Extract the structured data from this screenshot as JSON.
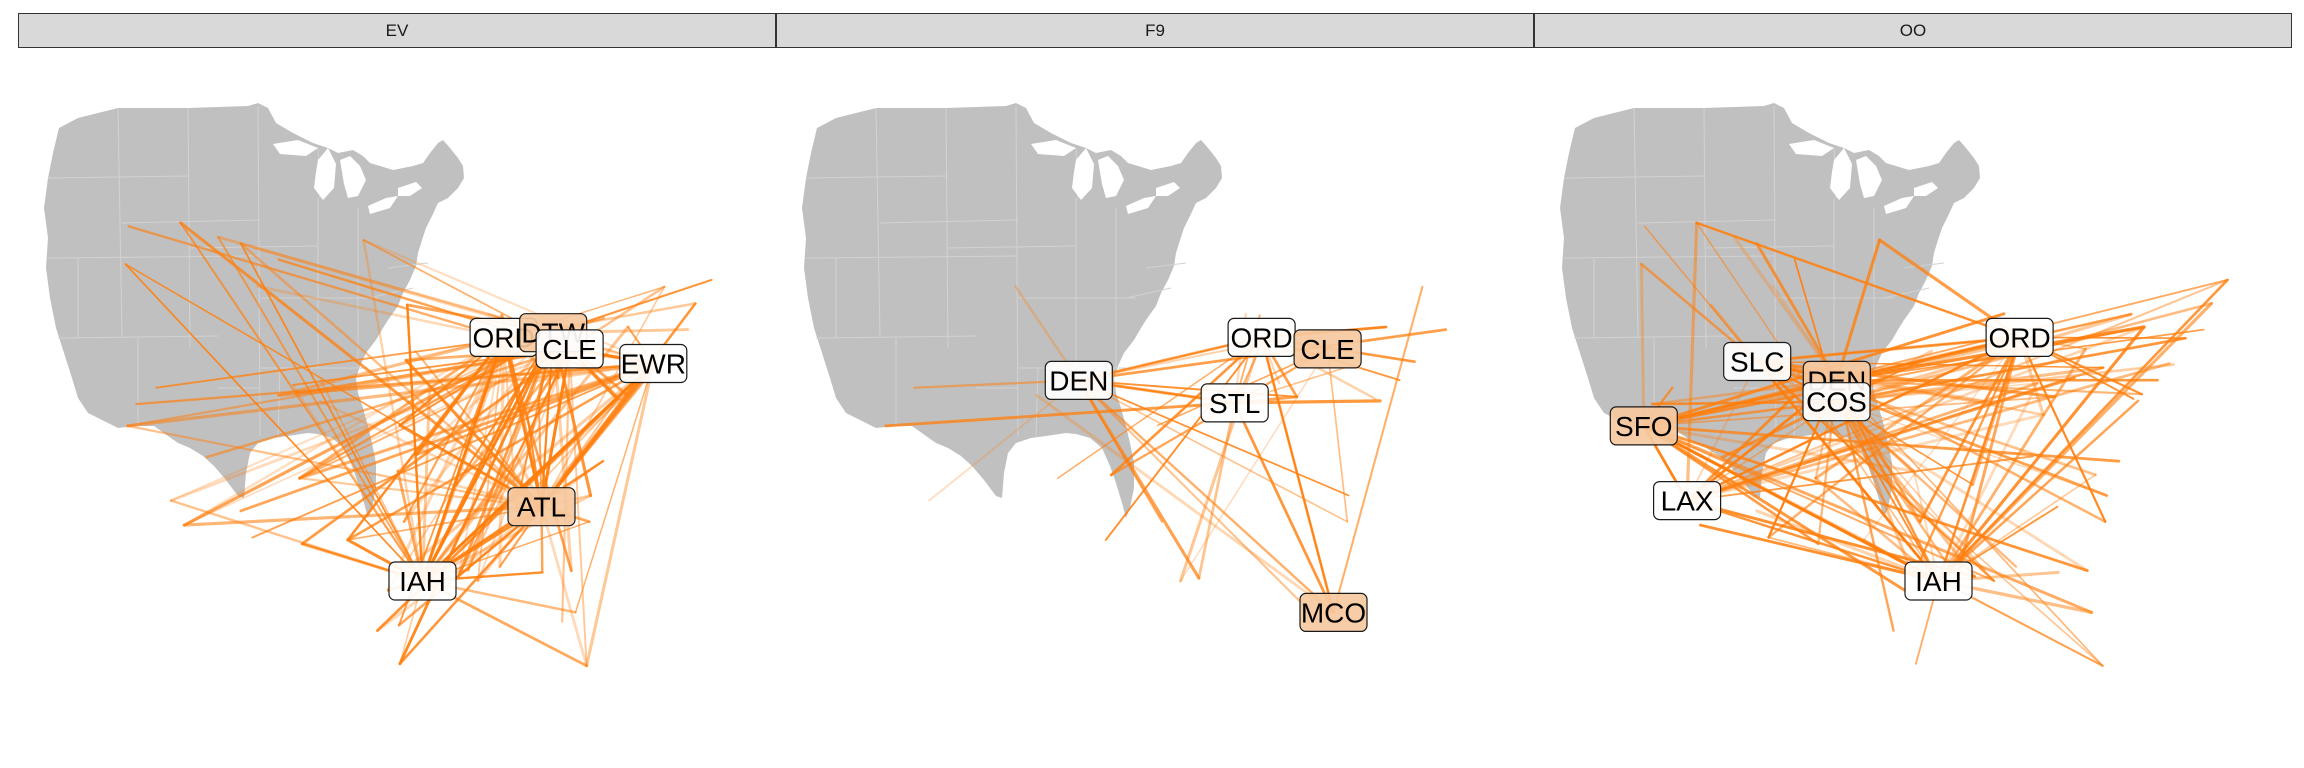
{
  "chart_data": {
    "type": "map",
    "facets": [
      {
        "label": "EV",
        "hubs": [
          {
            "code": "ORD",
            "lon": -87.9,
            "lat": 41.98
          },
          {
            "code": "DTW",
            "lon": -83.35,
            "lat": 42.21
          },
          {
            "code": "CLE",
            "lon": -81.85,
            "lat": 41.41
          },
          {
            "code": "EWR",
            "lon": -74.17,
            "lat": 40.69
          },
          {
            "code": "ATL",
            "lon": -84.43,
            "lat": 33.64
          },
          {
            "code": "IAH",
            "lon": -95.34,
            "lat": 29.98
          }
        ]
      },
      {
        "label": "F9",
        "hubs": [
          {
            "code": "ORD",
            "lon": -87.9,
            "lat": 41.98
          },
          {
            "code": "CLE",
            "lon": -81.85,
            "lat": 41.41
          },
          {
            "code": "DEN",
            "lon": -104.67,
            "lat": 39.86
          },
          {
            "code": "STL",
            "lon": -90.37,
            "lat": 38.75
          },
          {
            "code": "MCO",
            "lon": -81.31,
            "lat": 28.43
          }
        ]
      },
      {
        "label": "OO",
        "hubs": [
          {
            "code": "SLC",
            "lon": -111.98,
            "lat": 40.79
          },
          {
            "code": "DEN",
            "lon": -104.67,
            "lat": 39.86
          },
          {
            "code": "COS",
            "lon": -104.7,
            "lat": 38.81
          },
          {
            "code": "ORD",
            "lon": -87.9,
            "lat": 41.98
          },
          {
            "code": "SFO",
            "lon": -122.38,
            "lat": 37.62
          },
          {
            "code": "LAX",
            "lon": -118.41,
            "lat": 33.94
          },
          {
            "code": "IAH",
            "lon": -95.34,
            "lat": 29.98
          }
        ]
      }
    ],
    "colors": {
      "route": "#ff7f0e",
      "land": "#c0c0c0",
      "state_border": "#d2d2d2",
      "label_fill": "#ffffff",
      "label_fill_high": "#f6c9a0",
      "strip_fill": "#d9d9d9"
    }
  }
}
